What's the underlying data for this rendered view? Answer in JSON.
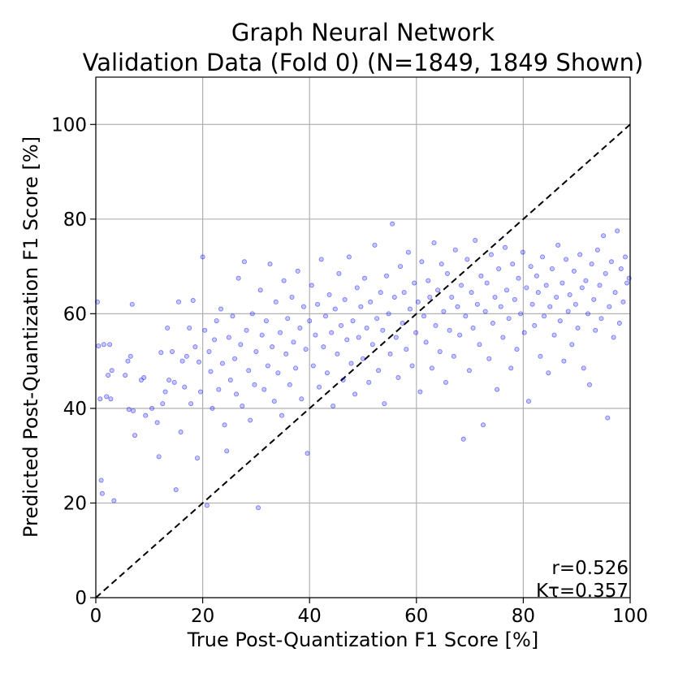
{
  "chart_data": {
    "type": "scatter",
    "title_line1": "Graph Neural Network",
    "title_line2": "Validation Data (Fold 0) (N=1849, 1849 Shown)",
    "xlabel": "True Post-Quantization F1 Score [%]",
    "ylabel": "Predicted Post-Quantization F1 Score [%]",
    "xlim": [
      0,
      100
    ],
    "ylim": [
      0,
      110
    ],
    "xticks": [
      0,
      20,
      40,
      60,
      80,
      100
    ],
    "yticks": [
      0,
      20,
      40,
      60,
      80,
      100
    ],
    "grid": true,
    "reference_line": {
      "style": "dashed",
      "color": "#000000",
      "from": [
        0,
        0
      ],
      "to": [
        100,
        100
      ]
    },
    "annotations": {
      "r": "r=0.526",
      "ktau": "Kτ=0.357"
    },
    "series": [
      {
        "color": "#0000ff",
        "alpha": 0.25,
        "n": 1849,
        "points": [
          [
            0.3,
            62.5
          ],
          [
            0.5,
            53.2
          ],
          [
            0.8,
            42.0
          ],
          [
            1.0,
            24.8
          ],
          [
            1.2,
            22.0
          ],
          [
            1.5,
            53.5
          ],
          [
            2.0,
            42.5
          ],
          [
            2.3,
            47.0
          ],
          [
            2.6,
            53.5
          ],
          [
            2.8,
            42.0
          ],
          [
            3.0,
            48.0
          ],
          [
            3.4,
            20.5
          ],
          [
            5.5,
            47.0
          ],
          [
            6.0,
            50.0
          ],
          [
            6.2,
            39.8
          ],
          [
            6.5,
            51.0
          ],
          [
            6.8,
            62.0
          ],
          [
            7.0,
            39.5
          ],
          [
            7.3,
            34.3
          ],
          [
            8.5,
            46.0
          ],
          [
            9.0,
            46.5
          ],
          [
            9.3,
            38.5
          ],
          [
            10.5,
            40.0
          ],
          [
            11.5,
            37.0
          ],
          [
            11.8,
            29.8
          ],
          [
            12.2,
            51.8
          ],
          [
            12.5,
            41.0
          ],
          [
            13.0,
            43.5
          ],
          [
            13.4,
            57.0
          ],
          [
            13.7,
            46.0
          ],
          [
            14.3,
            52.0
          ],
          [
            14.7,
            45.5
          ],
          [
            15.0,
            22.8
          ],
          [
            15.5,
            62.5
          ],
          [
            15.9,
            35.0
          ],
          [
            16.2,
            50.0
          ],
          [
            16.6,
            44.5
          ],
          [
            17.0,
            51.0
          ],
          [
            17.5,
            57.0
          ],
          [
            17.8,
            41.0
          ],
          [
            18.2,
            62.8
          ],
          [
            18.6,
            53.0
          ],
          [
            19.0,
            29.5
          ],
          [
            19.3,
            49.8
          ],
          [
            19.6,
            43.5
          ],
          [
            20.0,
            72.0
          ],
          [
            20.4,
            56.5
          ],
          [
            20.8,
            19.5
          ],
          [
            21.2,
            52.0
          ],
          [
            21.5,
            47.8
          ],
          [
            21.8,
            40.0
          ],
          [
            22.2,
            54.5
          ],
          [
            22.6,
            58.5
          ],
          [
            23.0,
            44.0
          ],
          [
            23.4,
            61.0
          ],
          [
            23.7,
            49.5
          ],
          [
            24.1,
            36.5
          ],
          [
            24.5,
            31.0
          ],
          [
            24.9,
            55.0
          ],
          [
            25.2,
            46.0
          ],
          [
            25.6,
            59.5
          ],
          [
            26.0,
            50.5
          ],
          [
            26.3,
            43.0
          ],
          [
            26.7,
            67.5
          ],
          [
            27.1,
            53.5
          ],
          [
            27.4,
            40.5
          ],
          [
            27.8,
            71.0
          ],
          [
            28.2,
            56.5
          ],
          [
            28.6,
            48.0
          ],
          [
            28.9,
            37.5
          ],
          [
            29.3,
            60.0
          ],
          [
            29.7,
            45.0
          ],
          [
            30.0,
            52.0
          ],
          [
            30.4,
            19.0
          ],
          [
            30.8,
            65.0
          ],
          [
            31.1,
            55.5
          ],
          [
            31.5,
            44.0
          ],
          [
            31.9,
            58.5
          ],
          [
            32.2,
            49.0
          ],
          [
            32.6,
            70.5
          ],
          [
            33.0,
            53.0
          ],
          [
            33.4,
            41.5
          ],
          [
            33.7,
            62.5
          ],
          [
            34.1,
            47.5
          ],
          [
            34.5,
            56.0
          ],
          [
            34.8,
            38.5
          ],
          [
            35.2,
            67.0
          ],
          [
            35.6,
            51.5
          ],
          [
            35.9,
            59.0
          ],
          [
            36.3,
            45.0
          ],
          [
            36.7,
            63.5
          ],
          [
            37.0,
            54.0
          ],
          [
            37.4,
            48.5
          ],
          [
            37.8,
            69.0
          ],
          [
            38.2,
            57.0
          ],
          [
            38.5,
            42.0
          ],
          [
            38.9,
            61.5
          ],
          [
            39.3,
            52.5
          ],
          [
            39.6,
            30.5
          ],
          [
            40.0,
            58.5
          ],
          [
            40.4,
            66.0
          ],
          [
            40.7,
            49.0
          ],
          [
            41.1,
            55.5
          ],
          [
            41.5,
            62.0
          ],
          [
            41.8,
            44.5
          ],
          [
            42.2,
            71.5
          ],
          [
            42.6,
            53.0
          ],
          [
            43.0,
            59.5
          ],
          [
            43.3,
            47.5
          ],
          [
            43.7,
            64.0
          ],
          [
            44.1,
            56.0
          ],
          [
            44.4,
            40.5
          ],
          [
            44.8,
            61.0
          ],
          [
            45.2,
            51.5
          ],
          [
            45.5,
            68.5
          ],
          [
            45.9,
            57.5
          ],
          [
            46.3,
            46.0
          ],
          [
            46.6,
            63.0
          ],
          [
            47.0,
            54.5
          ],
          [
            47.4,
            72.0
          ],
          [
            47.8,
            49.5
          ],
          [
            48.1,
            58.5
          ],
          [
            48.5,
            43.0
          ],
          [
            48.9,
            65.5
          ],
          [
            49.2,
            55.0
          ],
          [
            49.6,
            61.5
          ],
          [
            50.0,
            50.5
          ],
          [
            50.3,
            67.5
          ],
          [
            50.7,
            57.0
          ],
          [
            51.1,
            45.5
          ],
          [
            51.4,
            62.5
          ],
          [
            51.8,
            53.5
          ],
          [
            52.2,
            74.5
          ],
          [
            52.6,
            59.0
          ],
          [
            52.9,
            48.0
          ],
          [
            53.3,
            64.5
          ],
          [
            53.7,
            56.5
          ],
          [
            54.0,
            41.0
          ],
          [
            54.4,
            68.0
          ],
          [
            54.8,
            60.0
          ],
          [
            55.1,
            51.5
          ],
          [
            55.5,
            79.0
          ],
          [
            55.9,
            63.5
          ],
          [
            56.2,
            55.0
          ],
          [
            56.6,
            46.5
          ],
          [
            57.0,
            70.0
          ],
          [
            57.4,
            58.0
          ],
          [
            57.7,
            64.5
          ],
          [
            58.1,
            52.5
          ],
          [
            58.5,
            73.0
          ],
          [
            58.8,
            61.0
          ],
          [
            59.2,
            49.0
          ],
          [
            59.6,
            66.5
          ],
          [
            59.9,
            56.0
          ],
          [
            60.3,
            62.5
          ],
          [
            60.7,
            43.5
          ],
          [
            61.0,
            71.0
          ],
          [
            61.4,
            59.5
          ],
          [
            61.8,
            54.0
          ],
          [
            62.2,
            67.0
          ],
          [
            62.5,
            63.5
          ],
          [
            62.9,
            48.5
          ],
          [
            63.3,
            75.0
          ],
          [
            63.6,
            57.5
          ],
          [
            64.0,
            65.0
          ],
          [
            64.4,
            52.0
          ],
          [
            64.7,
            70.5
          ],
          [
            65.1,
            60.5
          ],
          [
            65.5,
            45.5
          ],
          [
            65.8,
            68.5
          ],
          [
            66.2,
            56.5
          ],
          [
            66.6,
            63.5
          ],
          [
            67.0,
            51.0
          ],
          [
            67.3,
            73.5
          ],
          [
            67.7,
            61.5
          ],
          [
            68.1,
            55.5
          ],
          [
            68.4,
            66.0
          ],
          [
            68.8,
            33.5
          ],
          [
            69.2,
            59.5
          ],
          [
            69.5,
            71.5
          ],
          [
            69.9,
            48.0
          ],
          [
            70.3,
            64.5
          ],
          [
            70.6,
            57.0
          ],
          [
            71.0,
            75.5
          ],
          [
            71.4,
            62.0
          ],
          [
            71.8,
            53.5
          ],
          [
            72.1,
            68.0
          ],
          [
            72.5,
            36.5
          ],
          [
            72.9,
            60.5
          ],
          [
            73.2,
            66.5
          ],
          [
            73.6,
            50.5
          ],
          [
            74.0,
            72.5
          ],
          [
            74.3,
            58.0
          ],
          [
            74.7,
            63.5
          ],
          [
            75.1,
            44.0
          ],
          [
            75.4,
            69.5
          ],
          [
            75.8,
            61.5
          ],
          [
            76.2,
            55.0
          ],
          [
            76.6,
            74.0
          ],
          [
            76.9,
            65.0
          ],
          [
            77.3,
            59.0
          ],
          [
            77.7,
            48.5
          ],
          [
            78.0,
            70.5
          ],
          [
            78.4,
            63.0
          ],
          [
            78.8,
            52.5
          ],
          [
            79.1,
            67.5
          ],
          [
            79.5,
            60.0
          ],
          [
            79.9,
            73.0
          ],
          [
            80.2,
            56.0
          ],
          [
            80.6,
            65.5
          ],
          [
            81.0,
            41.5
          ],
          [
            81.4,
            70.0
          ],
          [
            81.7,
            62.0
          ],
          [
            82.1,
            57.5
          ],
          [
            82.5,
            68.0
          ],
          [
            82.8,
            64.5
          ],
          [
            83.2,
            51.0
          ],
          [
            83.6,
            72.0
          ],
          [
            83.9,
            59.5
          ],
          [
            84.3,
            66.0
          ],
          [
            84.7,
            47.5
          ],
          [
            85.0,
            61.5
          ],
          [
            85.4,
            69.5
          ],
          [
            85.8,
            55.5
          ],
          [
            86.2,
            63.5
          ],
          [
            86.5,
            74.5
          ],
          [
            86.9,
            58.5
          ],
          [
            87.3,
            66.5
          ],
          [
            87.6,
            50.0
          ],
          [
            88.0,
            71.5
          ],
          [
            88.4,
            60.5
          ],
          [
            88.7,
            64.0
          ],
          [
            89.1,
            53.5
          ],
          [
            89.5,
            69.0
          ],
          [
            89.8,
            62.0
          ],
          [
            90.2,
            57.0
          ],
          [
            90.6,
            72.5
          ],
          [
            91.0,
            65.5
          ],
          [
            91.3,
            48.5
          ],
          [
            91.7,
            67.0
          ],
          [
            92.1,
            60.0
          ],
          [
            92.4,
            45.0
          ],
          [
            92.8,
            70.5
          ],
          [
            93.2,
            63.0
          ],
          [
            93.5,
            56.5
          ],
          [
            93.9,
            73.5
          ],
          [
            94.3,
            66.0
          ],
          [
            94.6,
            59.0
          ],
          [
            95.0,
            76.5
          ],
          [
            95.4,
            68.5
          ],
          [
            95.8,
            38.0
          ],
          [
            96.1,
            61.5
          ],
          [
            96.5,
            71.0
          ],
          [
            96.9,
            55.0
          ],
          [
            97.2,
            64.5
          ],
          [
            97.6,
            77.5
          ],
          [
            98.0,
            58.0
          ],
          [
            98.3,
            69.5
          ],
          [
            98.7,
            62.5
          ],
          [
            99.1,
            72.0
          ],
          [
            99.4,
            66.5
          ],
          [
            99.8,
            67.5
          ]
        ]
      }
    ]
  }
}
